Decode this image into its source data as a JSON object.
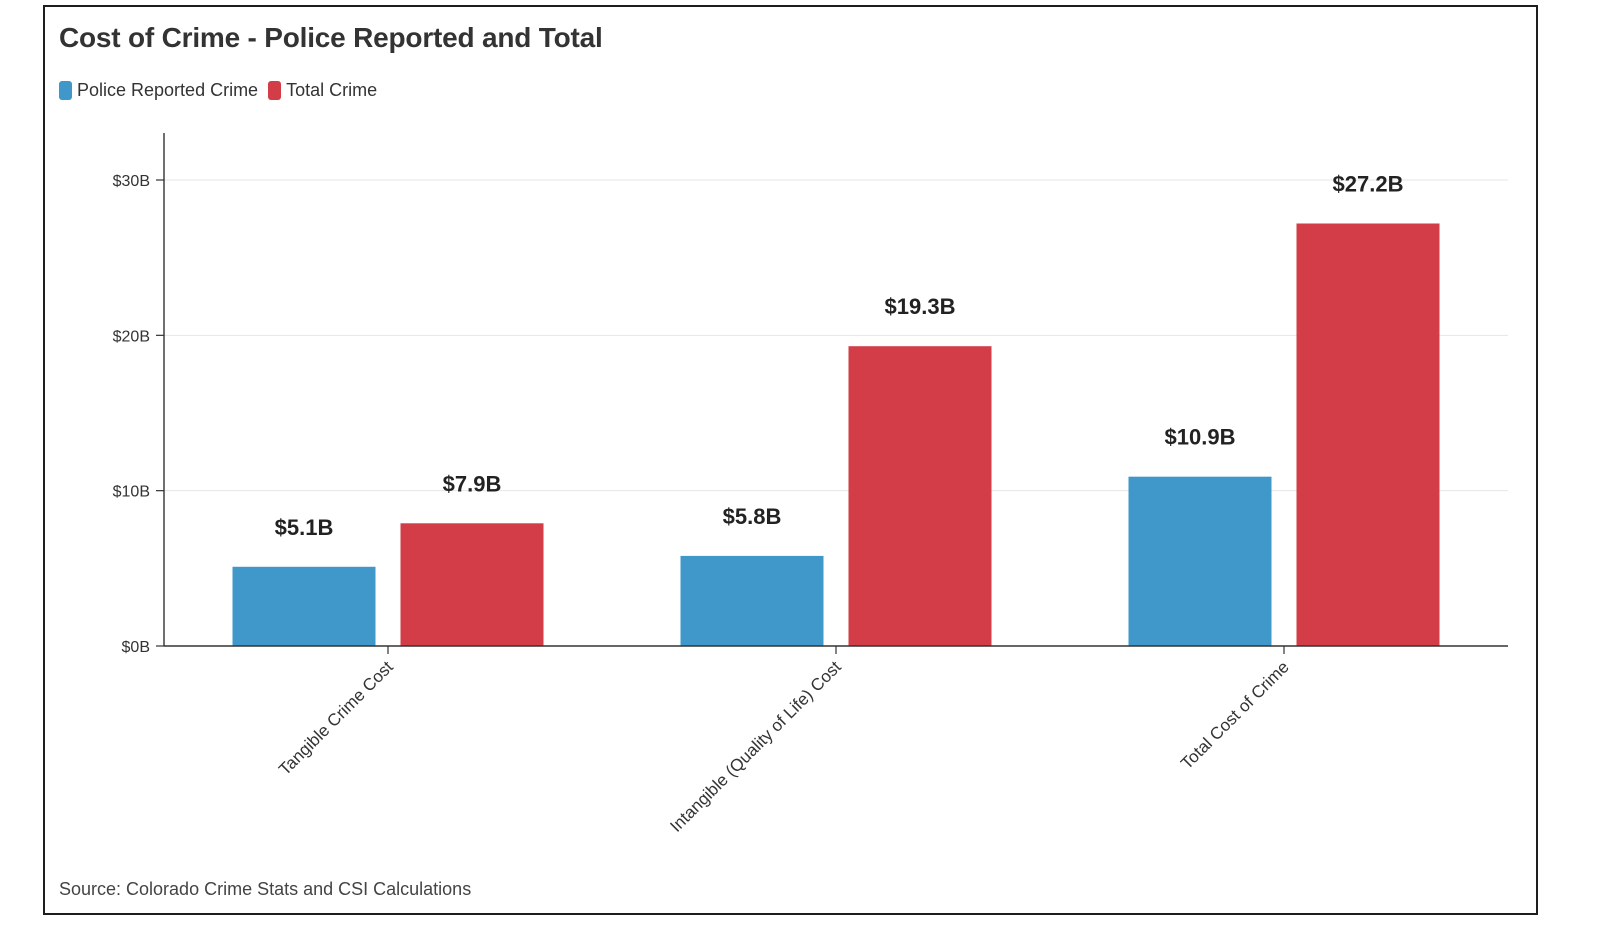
{
  "chart_data": {
    "type": "bar",
    "title": "Cost of Crime - Police Reported and Total",
    "categories": [
      "Tangible Crime Cost",
      "Intangible (Quality of Life) Cost",
      "Total Cost of Crime"
    ],
    "series": [
      {
        "name": "Police Reported Crime",
        "color": "#3f98c9",
        "values": [
          5.1,
          5.8,
          10.9
        ],
        "labels": [
          "$5.1B",
          "$5.8B",
          "$10.9B"
        ]
      },
      {
        "name": "Total Crime",
        "color": "#d33d47",
        "values": [
          7.9,
          19.3,
          27.2
        ],
        "labels": [
          "$7.9B",
          "$19.3B",
          "$27.2B"
        ]
      }
    ],
    "yticks": [
      0,
      10,
      20,
      30
    ],
    "ytick_labels": [
      "$0B",
      "$10B",
      "$20B",
      "$30B"
    ],
    "ylim": [
      0,
      33
    ],
    "xlabel": "",
    "ylabel": "",
    "grid": true,
    "legend_position": "top-left",
    "source": "Source: Colorado Crime Stats and CSI Calculations"
  }
}
